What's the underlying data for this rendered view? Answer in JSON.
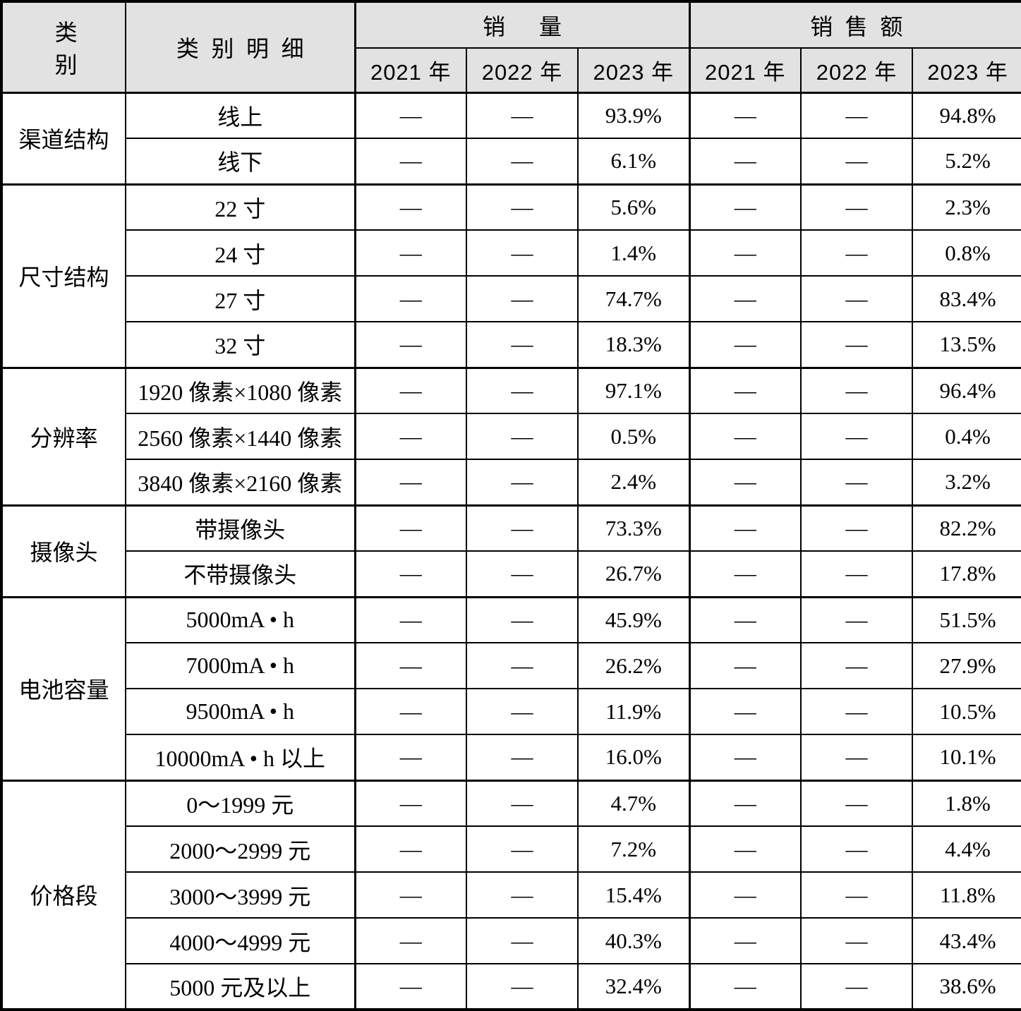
{
  "table": {
    "header": {
      "category": "类别",
      "category_detail": "类别明细",
      "sales_volume": "销量",
      "sales_amount": "销售额",
      "volume_years": [
        "2021 年",
        "2022 年",
        "2023 年"
      ],
      "amount_years": [
        "2021 年",
        "2022 年",
        "2023 年"
      ]
    },
    "colors": {
      "header_background": "#e2e2e2",
      "border": "#000000",
      "text": "#000000"
    },
    "groups": [
      {
        "label": "渠道结构",
        "rows": [
          {
            "detail": "线上",
            "volume": [
              "—",
              "—",
              "93.9%"
            ],
            "amount": [
              "—",
              "—",
              "94.8%"
            ]
          },
          {
            "detail": "线下",
            "volume": [
              "—",
              "—",
              "6.1%"
            ],
            "amount": [
              "—",
              "—",
              "5.2%"
            ]
          }
        ]
      },
      {
        "label": "尺寸结构",
        "rows": [
          {
            "detail": "22 寸",
            "volume": [
              "—",
              "—",
              "5.6%"
            ],
            "amount": [
              "—",
              "—",
              "2.3%"
            ]
          },
          {
            "detail": "24 寸",
            "volume": [
              "—",
              "—",
              "1.4%"
            ],
            "amount": [
              "—",
              "—",
              "0.8%"
            ]
          },
          {
            "detail": "27 寸",
            "volume": [
              "—",
              "—",
              "74.7%"
            ],
            "amount": [
              "—",
              "—",
              "83.4%"
            ]
          },
          {
            "detail": "32 寸",
            "volume": [
              "—",
              "—",
              "18.3%"
            ],
            "amount": [
              "—",
              "—",
              "13.5%"
            ]
          }
        ]
      },
      {
        "label": "分辨率",
        "rows": [
          {
            "detail": "1920 像素×1080 像素",
            "volume": [
              "—",
              "—",
              "97.1%"
            ],
            "amount": [
              "—",
              "—",
              "96.4%"
            ]
          },
          {
            "detail": "2560 像素×1440 像素",
            "volume": [
              "—",
              "—",
              "0.5%"
            ],
            "amount": [
              "—",
              "—",
              "0.4%"
            ]
          },
          {
            "detail": "3840 像素×2160 像素",
            "volume": [
              "—",
              "—",
              "2.4%"
            ],
            "amount": [
              "—",
              "—",
              "3.2%"
            ]
          }
        ]
      },
      {
        "label": "摄像头",
        "rows": [
          {
            "detail": "带摄像头",
            "volume": [
              "—",
              "—",
              "73.3%"
            ],
            "amount": [
              "—",
              "—",
              "82.2%"
            ]
          },
          {
            "detail": "不带摄像头",
            "volume": [
              "—",
              "—",
              "26.7%"
            ],
            "amount": [
              "—",
              "—",
              "17.8%"
            ]
          }
        ]
      },
      {
        "label": "电池容量",
        "rows": [
          {
            "detail": "5000mA • h",
            "volume": [
              "—",
              "—",
              "45.9%"
            ],
            "amount": [
              "—",
              "—",
              "51.5%"
            ]
          },
          {
            "detail": "7000mA • h",
            "volume": [
              "—",
              "—",
              "26.2%"
            ],
            "amount": [
              "—",
              "—",
              "27.9%"
            ]
          },
          {
            "detail": "9500mA • h",
            "volume": [
              "—",
              "—",
              "11.9%"
            ],
            "amount": [
              "—",
              "—",
              "10.5%"
            ]
          },
          {
            "detail": "10000mA • h 以上",
            "volume": [
              "—",
              "—",
              "16.0%"
            ],
            "amount": [
              "—",
              "—",
              "10.1%"
            ]
          }
        ]
      },
      {
        "label": "价格段",
        "rows": [
          {
            "detail": "0～1999 元",
            "volume": [
              "—",
              "—",
              "4.7%"
            ],
            "amount": [
              "—",
              "—",
              "1.8%"
            ]
          },
          {
            "detail": "2000～2999 元",
            "volume": [
              "—",
              "—",
              "7.2%"
            ],
            "amount": [
              "—",
              "—",
              "4.4%"
            ]
          },
          {
            "detail": "3000～3999 元",
            "volume": [
              "—",
              "—",
              "15.4%"
            ],
            "amount": [
              "—",
              "—",
              "11.8%"
            ]
          },
          {
            "detail": "4000～4999 元",
            "volume": [
              "—",
              "—",
              "40.3%"
            ],
            "amount": [
              "—",
              "—",
              "43.4%"
            ]
          },
          {
            "detail": "5000 元及以上",
            "volume": [
              "—",
              "—",
              "32.4%"
            ],
            "amount": [
              "—",
              "—",
              "38.6%"
            ]
          }
        ]
      }
    ]
  }
}
